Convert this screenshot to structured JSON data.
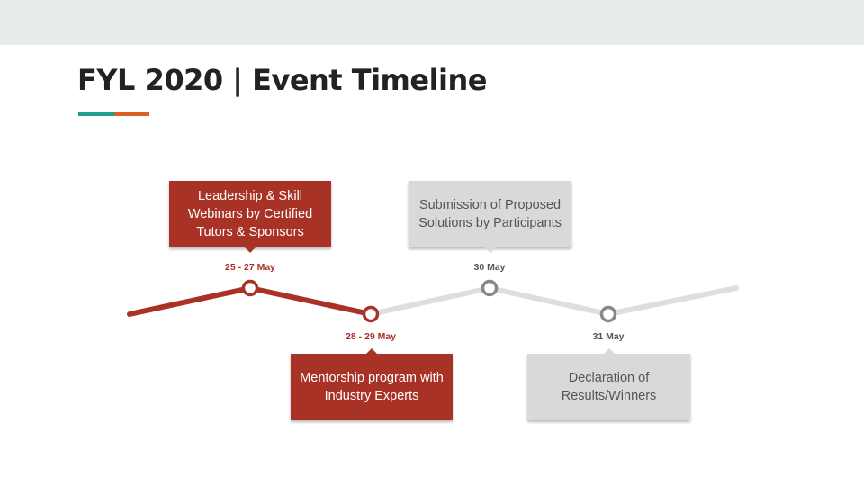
{
  "slide": {
    "title": "FYL 2020 | Event Timeline"
  },
  "colors": {
    "active": "#a93226",
    "inactive_line": "#dedede",
    "inactive_node": "#888888",
    "inactive_box": "#d9d9d9",
    "accent_teal": "#1f9e8c",
    "accent_orange": "#d9621e"
  },
  "chart_data": {
    "type": "timeline",
    "events": [
      {
        "date": "25 - 27 May",
        "label": "Leadership & Skill Webinars by Certified Tutors & Sponsors",
        "status": "active"
      },
      {
        "date": "28 - 29 May",
        "label": "Mentorship program with Industry Experts",
        "status": "active"
      },
      {
        "date": "30 May",
        "label": "Submission of Proposed Solutions by Participants",
        "status": "inactive"
      },
      {
        "date": "31 May",
        "label": "Declaration of Results/Winners",
        "status": "inactive"
      }
    ]
  }
}
